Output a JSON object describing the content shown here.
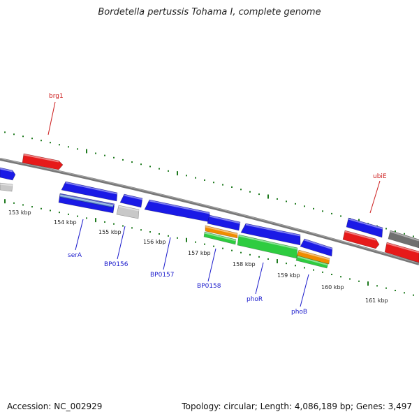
{
  "title": "Bordetella pertussis Tohama I, complete genome",
  "footer": {
    "accession": "Accession: NC_002929",
    "stats": "Topology: circular; Length: 4,086,189 bp; Genes: 3,497"
  },
  "colors": {
    "forward": "#1a1ae6",
    "reverse": "#e61a1a",
    "rna": "#2ecc40",
    "other": "#f08c00",
    "pseudo": "#c8c8c8",
    "grey": "#707070",
    "ticks": "#1e7a1e",
    "backbone": "#808080",
    "label_blue": "#1a1acc",
    "label_red": "#cc1a1a"
  },
  "kbp_labels": [
    "153 kbp",
    "154 kbp",
    "155 kbp",
    "156 kbp",
    "157 kbp",
    "158 kbp",
    "159 kbp",
    "160 kbp",
    "161 kbp"
  ],
  "gene_labels": [
    {
      "text": "brg1",
      "color": "red"
    },
    {
      "text": "ubiE",
      "color": "red"
    },
    {
      "text": "serA",
      "color": "blue"
    },
    {
      "text": "BP0156",
      "color": "blue"
    },
    {
      "text": "BP0157",
      "color": "blue"
    },
    {
      "text": "BP0158",
      "color": "blue"
    },
    {
      "text": "phoR",
      "color": "blue"
    },
    {
      "text": "phoB",
      "color": "blue"
    }
  ]
}
